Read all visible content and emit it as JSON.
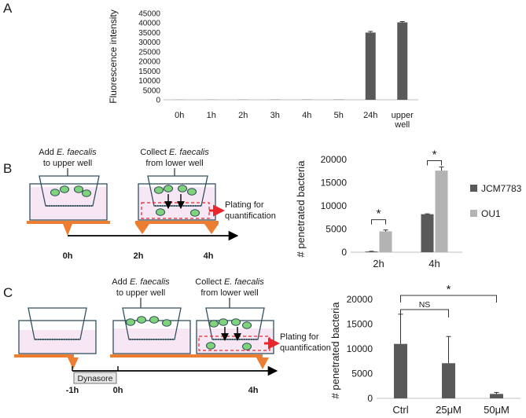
{
  "panels": {
    "a": {
      "letter": "A"
    },
    "b": {
      "letter": "B",
      "step1": {
        "line1_pre": "Add ",
        "organism": "E. faecalis",
        "line2": "to upper well"
      },
      "step2": {
        "line1_pre": "Collect ",
        "organism": "E. faecalis",
        "line2": "from lower well"
      },
      "plating": [
        "Plating for",
        "quantification"
      ],
      "timeline": [
        "0h",
        "2h",
        "4h"
      ]
    },
    "c": {
      "letter": "C",
      "step1": {
        "line1_pre": "Add ",
        "organism": "E. faecalis",
        "line2": "to upper well"
      },
      "step2": {
        "line1_pre": "Collect ",
        "organism": "E. faecalis",
        "line2": "from lower well"
      },
      "plating": [
        "Plating for",
        "quantification"
      ],
      "treatment_label": "Dynasore",
      "timeline": [
        "-1h",
        "0h",
        "4h"
      ]
    }
  },
  "colors": {
    "dark_bar": "#595959",
    "light_bar": "#b3b3b3",
    "medium": "#f7e6f4",
    "orange": "#ed7d31",
    "bacteria": "#7fd37a",
    "red_arrow": "#e8262b",
    "well_outline": "#33505f"
  },
  "chart_data": [
    {
      "type": "bar",
      "title": "",
      "xlabel": "",
      "ylabel": "Fluorescence intensity",
      "categories": [
        "0h",
        "1h",
        "2h",
        "3h",
        "4h",
        "5h",
        "24h",
        "upper well"
      ],
      "values": [
        50,
        60,
        80,
        90,
        100,
        120,
        35000,
        40300
      ],
      "errors": [
        0,
        0,
        0,
        0,
        0,
        0,
        600,
        400
      ],
      "ylim": [
        0,
        45000
      ],
      "yticks": [
        0,
        5000,
        10000,
        15000,
        20000,
        25000,
        30000,
        35000,
        40000,
        45000
      ],
      "grid": false
    },
    {
      "type": "bar",
      "title": "",
      "xlabel": "",
      "ylabel": "# penetrated bacteria",
      "categories": [
        "2h",
        "4h"
      ],
      "series": [
        {
          "name": "JCM7783",
          "values": [
            150,
            8200
          ],
          "errors": [
            50,
            80
          ]
        },
        {
          "name": "OU1",
          "values": [
            4500,
            17600
          ],
          "errors": [
            300,
            800
          ]
        }
      ],
      "ylim": [
        0,
        20000
      ],
      "yticks": [
        0,
        5000,
        10000,
        15000,
        20000
      ],
      "legend": "right",
      "annotations": [
        "*",
        "*"
      ]
    },
    {
      "type": "bar",
      "title": "",
      "xlabel": "",
      "ylabel": "# penetrated bacteria",
      "categories": [
        "Ctrl",
        "25μM",
        "50μM"
      ],
      "values": [
        11000,
        7100,
        900
      ],
      "errors": [
        6000,
        5400,
        300
      ],
      "ylim": [
        0,
        20000
      ],
      "yticks": [
        0,
        5000,
        10000,
        15000,
        20000
      ],
      "annotations": [
        "NS",
        "*"
      ]
    }
  ]
}
